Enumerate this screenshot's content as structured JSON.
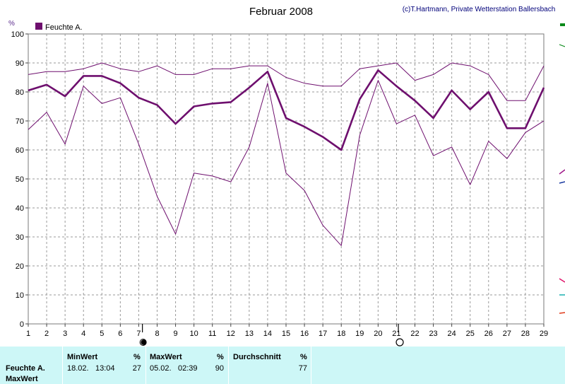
{
  "header": {
    "title": "Februar 2008",
    "credit": "(c)T.Hartmann, Private Wetterstation Ballersbach",
    "unit": "%"
  },
  "legend": {
    "label": "Feuchte A."
  },
  "colors": {
    "series": "#6e0f6e",
    "grid": "#9a9a9a",
    "title": "#000000",
    "credit": "#00007a",
    "axis_unit": "#5a2a8c",
    "panel": "#cdf7f7"
  },
  "chart_data": {
    "type": "line",
    "title": "Februar 2008",
    "ylabel": "%",
    "ylim": [
      0,
      100
    ],
    "yticks": [
      0,
      10,
      20,
      30,
      40,
      50,
      60,
      70,
      80,
      90,
      100
    ],
    "x": [
      1,
      2,
      3,
      4,
      5,
      6,
      7,
      8,
      9,
      10,
      11,
      12,
      13,
      14,
      15,
      16,
      17,
      18,
      19,
      20,
      21,
      22,
      23,
      24,
      25,
      26,
      27,
      28,
      29
    ],
    "grid": true,
    "legend": "top-left",
    "moon_markers": [
      {
        "day": 7.2,
        "phase": "new"
      },
      {
        "day": 21.1,
        "phase": "full"
      }
    ],
    "series": [
      {
        "name": "Feuchte A.",
        "role": "max",
        "values": [
          86,
          87,
          87,
          88,
          90,
          88,
          87,
          89,
          86,
          86,
          88,
          88,
          89,
          89,
          85,
          83,
          82,
          82,
          88,
          89,
          90,
          84,
          86,
          90,
          89,
          86,
          77,
          77,
          89
        ]
      },
      {
        "name": "Feuchte A.",
        "role": "mean",
        "values": [
          80.5,
          82.5,
          78.5,
          85.5,
          85.5,
          83,
          78,
          75.5,
          69,
          75,
          76,
          76.5,
          81.5,
          87,
          71,
          68,
          64.5,
          60,
          77.5,
          87.5,
          82,
          77,
          71,
          80.5,
          74,
          80,
          67.5,
          67.5,
          81.5
        ]
      },
      {
        "name": "Feuchte A.",
        "role": "min",
        "values": [
          67,
          73,
          62,
          82,
          76,
          78,
          62,
          44,
          31,
          52,
          51,
          49,
          61,
          83,
          52,
          46,
          34,
          27,
          65,
          84,
          69,
          72,
          58,
          61,
          48,
          63,
          57,
          66,
          70
        ]
      }
    ]
  },
  "stats": {
    "row_label": "Feuchte A.",
    "row_label2": "MaxWert",
    "min": {
      "header": "MinWert",
      "unit": "%",
      "date": "18.02.",
      "time": "13:04",
      "value": "27"
    },
    "max": {
      "header": "MaxWert",
      "unit": "%",
      "date": "05.02.",
      "time": "02:39",
      "value": "90"
    },
    "avg": {
      "header": "Durchschnitt",
      "unit": "%",
      "value": "77"
    }
  }
}
